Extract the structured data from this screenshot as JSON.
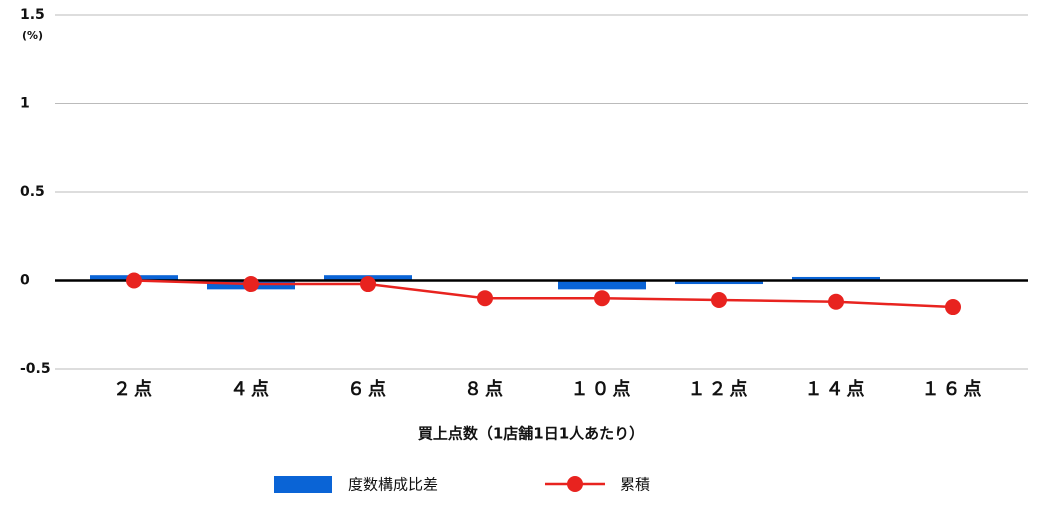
{
  "chart_data": {
    "type": "bar",
    "y_unit": "(%)",
    "x_label": "買上点数（1店舗1日1人あたり）",
    "categories": [
      "２点",
      "４点",
      "６点",
      "８点",
      "１０点",
      "１２点",
      "１４点",
      "１６点"
    ],
    "series": [
      {
        "name": "度数構成比差",
        "type": "bar",
        "color": "#0a64d6",
        "values": [
          0.03,
          -0.05,
          0.03,
          0,
          -0.05,
          -0.02,
          0.02,
          0
        ]
      },
      {
        "name": "累積",
        "type": "line",
        "color": "#e8231f",
        "values": [
          0.0,
          -0.02,
          -0.02,
          -0.1,
          -0.1,
          -0.11,
          -0.12,
          -0.15
        ]
      }
    ],
    "ylim": [
      -0.5,
      1.5
    ],
    "yticks": [
      -0.5,
      0,
      0.5,
      1,
      1.5
    ],
    "grid": true
  }
}
